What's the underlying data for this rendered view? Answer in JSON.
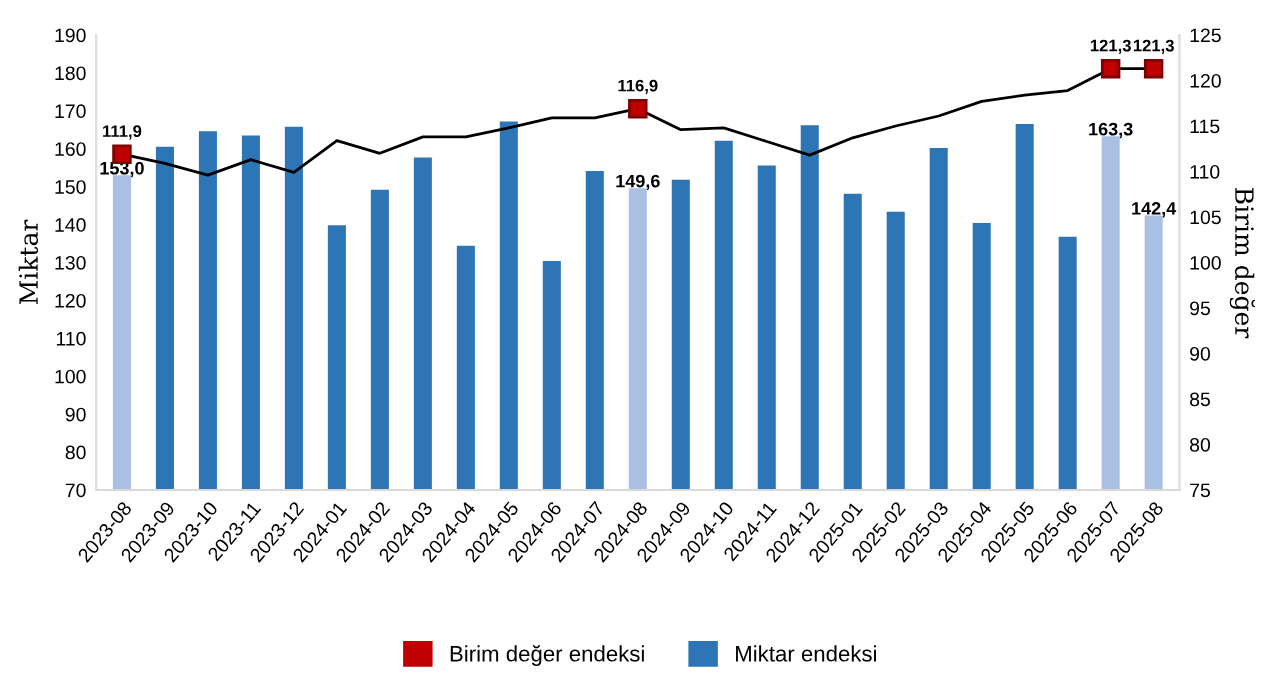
{
  "chart_data": {
    "type": "bar",
    "ylabel": "Miktar",
    "y2label": "Birim değer",
    "categories": [
      "2023-08",
      "2023-09",
      "2023-10",
      "2023-11",
      "2023-12",
      "2024-01",
      "2024-02",
      "2024-03",
      "2024-04",
      "2024-05",
      "2024-06",
      "2024-07",
      "2024-08",
      "2024-09",
      "2024-10",
      "2024-11",
      "2024-12",
      "2025-01",
      "2025-02",
      "2025-03",
      "2025-04",
      "2025-05",
      "2025-06",
      "2025-07",
      "2025-08"
    ],
    "series": [
      {
        "name": "Birim değer endeksi",
        "type": "line",
        "axis": "y2",
        "color": "#000000",
        "colors": [
          "#c00000",
          "#c00000",
          "#c00000",
          "#c00000",
          "#c00000",
          "#c00000",
          "#c00000",
          "#c00000",
          "#c00000",
          "#c00000",
          "#c00000",
          "#c00000",
          "#c00000",
          "#c00000",
          "#c00000",
          "#c00000",
          "#c00000",
          "#c00000",
          "#c00000",
          "#c00000",
          "#c00000",
          "#c00000",
          "#c00000",
          "#c00000",
          "#c00000"
        ],
        "values": [
          111.9,
          110.9,
          109.6,
          111.3,
          109.9,
          113.4,
          112.0,
          113.8,
          113.8,
          114.8,
          115.9,
          115.9,
          116.9,
          114.6,
          114.8,
          113.3,
          111.8,
          113.7,
          115.0,
          116.1,
          117.7,
          118.4,
          118.9,
          121.3,
          121.3
        ],
        "value_labels": [
          "111,9",
          null,
          null,
          null,
          null,
          null,
          null,
          null,
          null,
          null,
          null,
          null,
          "116,9",
          null,
          null,
          null,
          null,
          null,
          null,
          null,
          null,
          null,
          null,
          "121,3",
          "121,3"
        ]
      },
      {
        "name": "Miktar endeksi",
        "color": "#2e75b6",
        "colors": [
          "#a9c0e3",
          "#2e75b6",
          "#2e75b6",
          "#2e75b6",
          "#2e75b6",
          "#2e75b6",
          "#2e75b6",
          "#2e75b6",
          "#2e75b6",
          "#2e75b6",
          "#2e75b6",
          "#2e75b6",
          "#a9c0e3",
          "#2e75b6",
          "#2e75b6",
          "#2e75b6",
          "#2e75b6",
          "#2e75b6",
          "#2e75b6",
          "#2e75b6",
          "#2e75b6",
          "#2e75b6",
          "#2e75b6",
          "#a9c0e3",
          "#a9c0e3"
        ],
        "values": [
          153.0,
          160.5,
          164.6,
          163.5,
          165.8,
          139.8,
          149.2,
          157.7,
          134.4,
          167.2,
          130.4,
          154.1,
          149.6,
          151.8,
          162.1,
          155.6,
          166.2,
          148.1,
          143.4,
          160.2,
          140.4,
          166.5,
          136.8,
          163.3,
          142.4
        ],
        "value_labels": [
          "153,0",
          null,
          null,
          null,
          null,
          null,
          null,
          null,
          null,
          null,
          null,
          null,
          "149,6",
          null,
          null,
          null,
          null,
          null,
          null,
          null,
          null,
          null,
          null,
          "163,3",
          "142,4"
        ]
      }
    ],
    "ylim": [
      70,
      190
    ],
    "yticks": [
      70,
      80,
      90,
      100,
      110,
      120,
      130,
      140,
      150,
      160,
      170,
      180,
      190
    ],
    "y2lim": [
      75,
      125
    ],
    "y2ticks": [
      75,
      80,
      85,
      90,
      95,
      100,
      105,
      110,
      115,
      120,
      125
    ],
    "legend": "bottom",
    "grid": false
  }
}
